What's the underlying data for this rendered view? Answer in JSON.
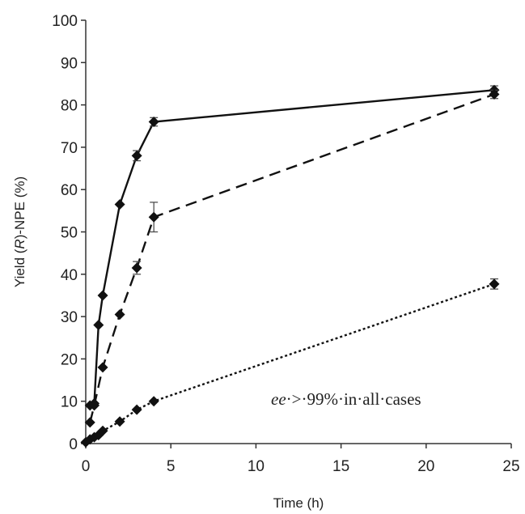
{
  "chart_data": {
    "type": "line",
    "title": "",
    "xlabel": "Time (h)",
    "ylabel_parts": [
      "Yield (",
      "R",
      ")-NPE (%)"
    ],
    "xlim": [
      0,
      25
    ],
    "ylim": [
      0,
      100
    ],
    "x_ticks": [
      0,
      5,
      10,
      15,
      20,
      25
    ],
    "y_ticks": [
      0,
      10,
      20,
      30,
      40,
      50,
      60,
      70,
      80,
      90,
      100
    ],
    "grid": false,
    "legend": "none",
    "annotation": {
      "italic_part": "ee",
      "rest": "·>·99%·in·all·cases"
    },
    "series": [
      {
        "line_style": "solid",
        "x": [
          0.25,
          0.5,
          0.75,
          1,
          2,
          3,
          4,
          24
        ],
        "y": [
          9,
          9.5,
          28,
          35,
          56.5,
          68,
          76,
          83.5
        ],
        "err": [
          0,
          0,
          0,
          0,
          0,
          1.2,
          1,
          1
        ]
      },
      {
        "line_style": "dashed",
        "x": [
          0.25,
          0.5,
          1,
          2,
          3,
          4,
          24
        ],
        "y": [
          5,
          9,
          18,
          30.5,
          41.5,
          53.5,
          82.5
        ],
        "err": [
          0,
          0,
          0,
          0,
          1.5,
          3.5,
          1
        ]
      },
      {
        "line_style": "dotted",
        "x": [
          0,
          0.25,
          0.5,
          0.75,
          1,
          2,
          3,
          4,
          24
        ],
        "y": [
          0.3,
          1,
          1.5,
          2,
          3,
          5.2,
          8,
          10,
          37.7
        ],
        "err": [
          0,
          0,
          0,
          0,
          0,
          0,
          0,
          0,
          1.2
        ]
      }
    ]
  }
}
